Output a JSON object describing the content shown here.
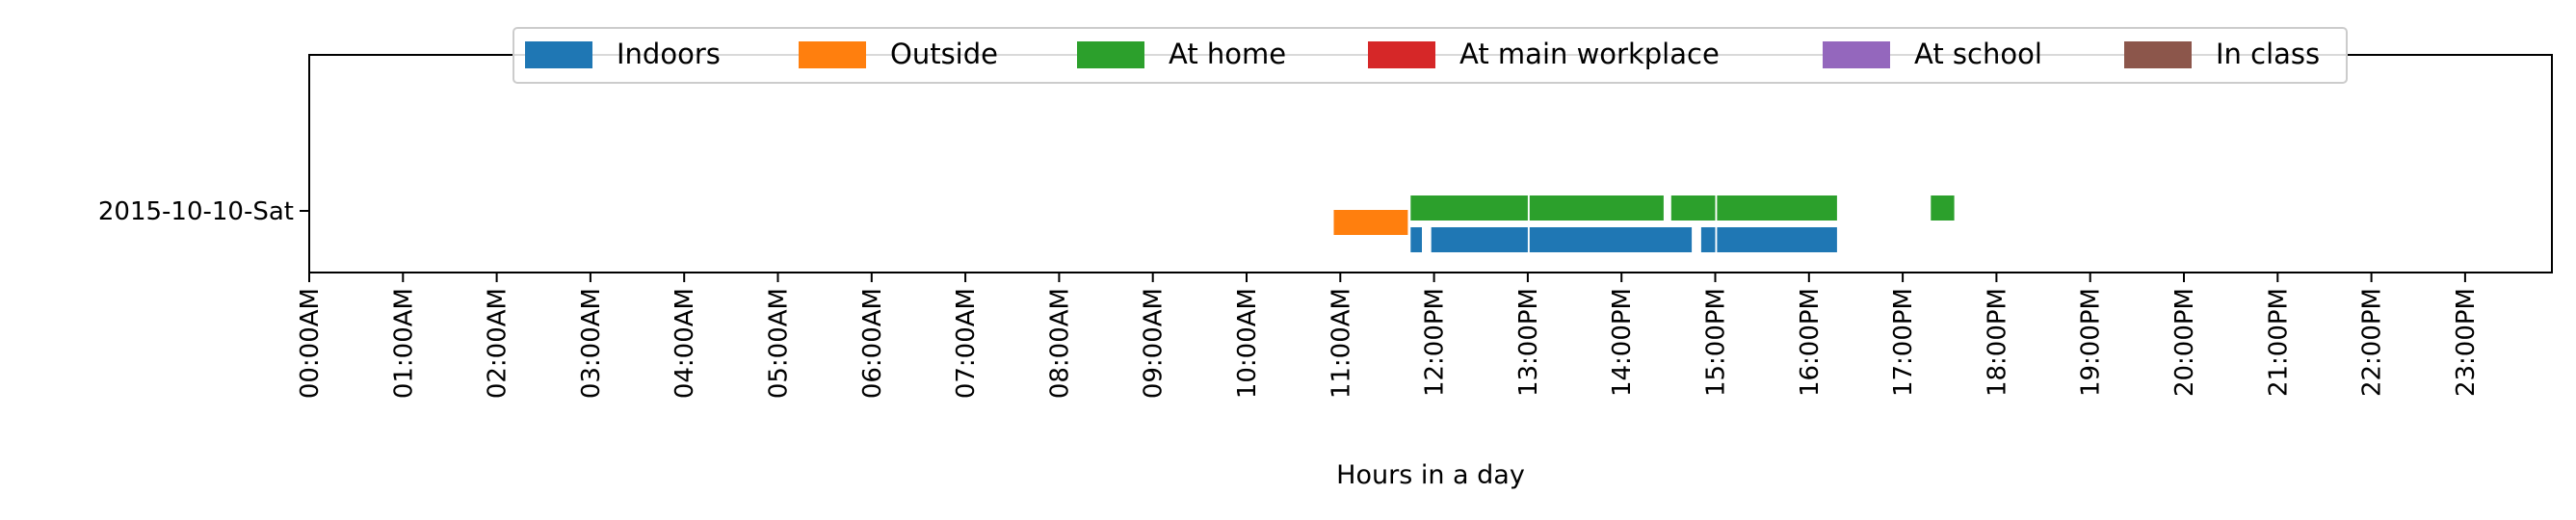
{
  "chart_data": {
    "type": "timeline",
    "xlabel": "Hours in a day",
    "xlim_hours": [
      0,
      24
    ],
    "x_tick_labels": [
      "00:00AM",
      "01:00AM",
      "02:00AM",
      "03:00AM",
      "04:00AM",
      "05:00AM",
      "06:00AM",
      "07:00AM",
      "08:00AM",
      "09:00AM",
      "10:00AM",
      "11:00AM",
      "12:00PM",
      "13:00PM",
      "14:00PM",
      "15:00PM",
      "16:00PM",
      "17:00PM",
      "18:00PM",
      "19:00PM",
      "20:00PM",
      "21:00PM",
      "22:00PM",
      "23:00PM"
    ],
    "y_tick_labels": [
      "2015-10-10-Sat"
    ],
    "legend": {
      "placement": "top-center",
      "entries": [
        {
          "name": "Indoors",
          "color": "#1f77b4"
        },
        {
          "name": "Outside",
          "color": "#ff7f0e"
        },
        {
          "name": "At home",
          "color": "#2ca02c"
        },
        {
          "name": "At main workplace",
          "color": "#d62728"
        },
        {
          "name": "At school",
          "color": "#9467bd"
        },
        {
          "name": "In class",
          "color": "#8c564b"
        }
      ]
    },
    "series": [
      {
        "name": "Indoors",
        "color": "#1f77b4",
        "intervals": [
          [
            11.75,
            11.87
          ],
          [
            11.97,
            13.0
          ],
          [
            13.02,
            14.75
          ],
          [
            14.85,
            15.0
          ],
          [
            15.02,
            16.3
          ]
        ]
      },
      {
        "name": "Outside",
        "color": "#ff7f0e",
        "intervals": [
          [
            10.93,
            11.72
          ]
        ]
      },
      {
        "name": "At home",
        "color": "#2ca02c",
        "intervals": [
          [
            11.75,
            13.0
          ],
          [
            13.02,
            14.45
          ],
          [
            14.53,
            15.0
          ],
          [
            15.02,
            16.3
          ],
          [
            17.3,
            17.55
          ]
        ]
      },
      {
        "name": "At main workplace",
        "color": "#d62728",
        "intervals": []
      },
      {
        "name": "At school",
        "color": "#9467bd",
        "intervals": []
      },
      {
        "name": "In class",
        "color": "#8c564b",
        "intervals": []
      }
    ]
  }
}
